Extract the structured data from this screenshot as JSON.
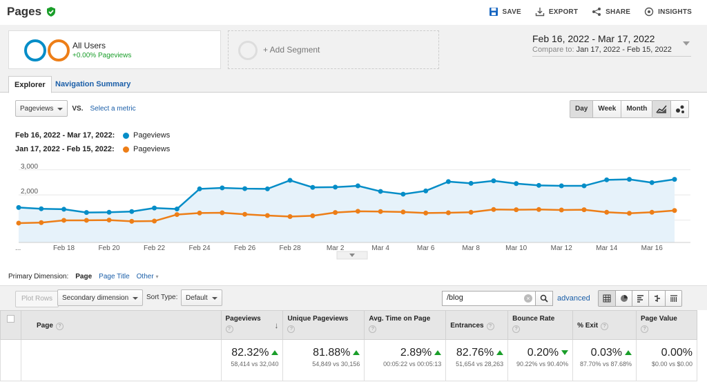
{
  "header": {
    "title": "Pages",
    "actions": [
      {
        "label": "SAVE",
        "icon": "save-icon"
      },
      {
        "label": "EXPORT",
        "icon": "export-icon"
      },
      {
        "label": "SHARE",
        "icon": "share-icon"
      },
      {
        "label": "INSIGHTS",
        "icon": "insights-icon"
      }
    ]
  },
  "segments": {
    "active": {
      "name": "All Users",
      "sub": "+0.00% Pageviews"
    },
    "add_label": "+ Add Segment"
  },
  "date_range": {
    "main": "Feb 16, 2022 - Mar 17, 2022",
    "compare_label": "Compare to:",
    "compare_value": "Jan 17, 2022 - Feb 15, 2022"
  },
  "tabs": {
    "explorer": "Explorer",
    "nav_summary": "Navigation Summary"
  },
  "metric_bar": {
    "metric": "Pageviews",
    "vs": "VS.",
    "select_metric": "Select a metric"
  },
  "granularity": {
    "day": "Day",
    "week": "Week",
    "month": "Month"
  },
  "legend": [
    {
      "range": "Feb 16, 2022 - Mar 17, 2022:",
      "metric": "Pageviews",
      "color": "#058dc7"
    },
    {
      "range": "Jan 17, 2022 - Feb 15, 2022:",
      "metric": "Pageviews",
      "color": "#ed7e17"
    }
  ],
  "chart_data": {
    "type": "line",
    "y_ticks": [
      "3,000",
      "2,000",
      "1,000"
    ],
    "ylim": [
      0,
      3000
    ],
    "x_tick_labels": [
      "...",
      "Feb 18",
      "Feb 20",
      "Feb 22",
      "Feb 24",
      "Feb 26",
      "Feb 28",
      "Mar 2",
      "Mar 4",
      "Mar 6",
      "Mar 8",
      "Mar 10",
      "Mar 12",
      "Mar 14",
      "Mar 16"
    ],
    "series": [
      {
        "color": "#058dc7",
        "values": [
          1500,
          1450,
          1430,
          1300,
          1310,
          1340,
          1480,
          1440,
          2240,
          2280,
          2250,
          2240,
          2580,
          2300,
          2310,
          2360,
          2140,
          2030,
          2160,
          2530,
          2460,
          2560,
          2450,
          2380,
          2360,
          2360,
          2600,
          2620,
          2490,
          2620
        ]
      },
      {
        "color": "#ed7e17",
        "values": [
          880,
          900,
          990,
          990,
          1000,
          950,
          960,
          1220,
          1280,
          1290,
          1230,
          1180,
          1140,
          1170,
          1300,
          1350,
          1340,
          1320,
          1280,
          1290,
          1310,
          1420,
          1410,
          1420,
          1400,
          1410,
          1310,
          1270,
          1310,
          1380
        ]
      }
    ]
  },
  "primary_dimension": {
    "label": "Primary Dimension:",
    "current": "Page",
    "page_title": "Page Title",
    "other": "Other"
  },
  "table_tools": {
    "plot_rows": "Plot Rows",
    "secondary_dimension": "Secondary dimension",
    "sort_type_label": "Sort Type:",
    "sort_type": "Default",
    "search_value": "/blog",
    "advanced": "advanced"
  },
  "table": {
    "columns": [
      "Page",
      "Pageviews",
      "Unique Pageviews",
      "Avg. Time on Page",
      "Entrances",
      "Bounce Rate",
      "% Exit",
      "Page Value"
    ],
    "totals": [
      {
        "pct": "82.32%",
        "dir": "up",
        "cmp": "58,414 vs 32,040"
      },
      {
        "pct": "81.88%",
        "dir": "up",
        "cmp": "54,849 vs 30,156"
      },
      {
        "pct": "2.89%",
        "dir": "up",
        "cmp": "00:05:22 vs 00:05:13"
      },
      {
        "pct": "82.76%",
        "dir": "up",
        "cmp": "51,654 vs 28,263"
      },
      {
        "pct": "0.20%",
        "dir": "down",
        "cmp": "90.22% vs 90.40%"
      },
      {
        "pct": "0.03%",
        "dir": "up",
        "cmp": "87.70% vs 87.68%"
      },
      {
        "pct": "0.00%",
        "dir": "none",
        "cmp": "$0.00 vs $0.00"
      }
    ]
  }
}
